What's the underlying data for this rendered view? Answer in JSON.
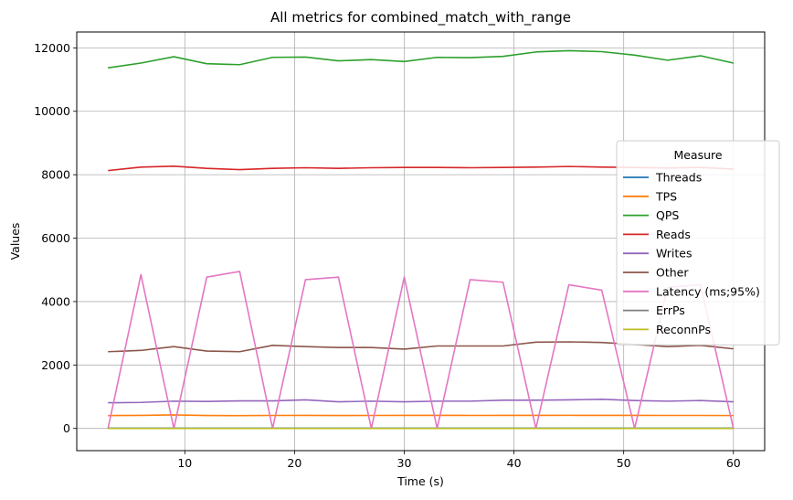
{
  "chart_data": {
    "type": "line",
    "title": "All metrics for combined_match_with_range",
    "xlabel": "Time (s)",
    "ylabel": "Values",
    "xlim": [
      0.15,
      62.85
    ],
    "ylim": [
      -700,
      12500
    ],
    "xticks": [
      10,
      20,
      30,
      40,
      50,
      60
    ],
    "yticks": [
      0,
      2000,
      4000,
      6000,
      8000,
      10000,
      12000
    ],
    "grid": true,
    "legend": {
      "title": "Measure",
      "placement": "center-right"
    },
    "x": [
      3,
      6,
      9,
      12,
      15,
      18,
      21,
      24,
      27,
      30,
      33,
      36,
      39,
      42,
      45,
      48,
      51,
      54,
      57,
      60
    ],
    "series": [
      {
        "name": "Threads",
        "color": "#1f77b4",
        "values": [
          8,
          8,
          8,
          8,
          8,
          8,
          8,
          8,
          8,
          8,
          8,
          8,
          8,
          8,
          8,
          8,
          8,
          8,
          8,
          8
        ]
      },
      {
        "name": "TPS",
        "color": "#ff7f0e",
        "values": [
          405,
          411,
          427,
          408,
          404,
          410,
          411,
          408,
          410,
          411,
          411,
          410,
          411,
          412,
          413,
          412,
          411,
          410,
          410,
          406
        ]
      },
      {
        "name": "QPS",
        "color": "#2ca02c",
        "values": [
          11370,
          11520,
          11720,
          11500,
          11470,
          11700,
          11710,
          11590,
          11630,
          11570,
          11700,
          11690,
          11730,
          11870,
          11910,
          11880,
          11770,
          11610,
          11750,
          11520
        ]
      },
      {
        "name": "Reads",
        "color": "#d62728",
        "values": [
          8130,
          8240,
          8270,
          8200,
          8160,
          8200,
          8220,
          8200,
          8220,
          8230,
          8230,
          8220,
          8230,
          8240,
          8260,
          8240,
          8230,
          8210,
          8230,
          8180
        ]
      },
      {
        "name": "Writes",
        "color": "#9467bd",
        "values": [
          810,
          820,
          860,
          850,
          870,
          870,
          900,
          840,
          860,
          840,
          860,
          860,
          890,
          890,
          900,
          920,
          880,
          860,
          880,
          840
        ]
      },
      {
        "name": "Other",
        "color": "#8c564b",
        "values": [
          2420,
          2460,
          2580,
          2440,
          2420,
          2620,
          2580,
          2550,
          2550,
          2500,
          2600,
          2600,
          2600,
          2720,
          2730,
          2710,
          2650,
          2580,
          2620,
          2510
        ]
      },
      {
        "name": "Latency (ms;95%)",
        "color": "#e377c2",
        "values": [
          0,
          4850,
          0,
          4770,
          4950,
          0,
          4690,
          4770,
          0,
          4770,
          0,
          4690,
          4610,
          0,
          4530,
          4360,
          0,
          4450,
          4530,
          0
        ]
      },
      {
        "name": "ErrPs",
        "color": "#7f7f7f",
        "values": [
          0,
          0,
          0,
          0,
          0,
          0,
          0,
          0,
          0,
          0,
          0,
          0,
          0,
          0,
          0,
          0,
          0,
          0,
          0,
          0
        ]
      },
      {
        "name": "ReconnPs",
        "color": "#bcbd22",
        "values": [
          0,
          0,
          0,
          0,
          0,
          0,
          0,
          0,
          0,
          0,
          0,
          0,
          0,
          0,
          0,
          0,
          0,
          0,
          0,
          0
        ]
      }
    ]
  }
}
